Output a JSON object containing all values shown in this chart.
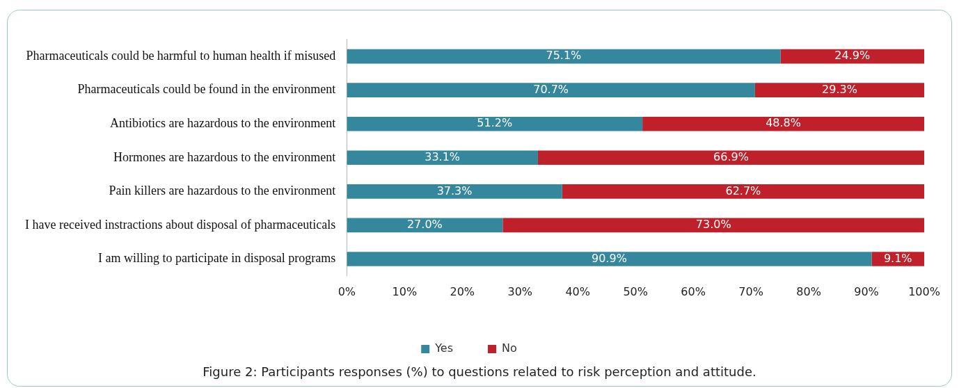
{
  "chart_data": {
    "type": "bar",
    "orientation": "horizontal",
    "stacked": true,
    "categories": [
      "Pharmaceuticals could be harmful to human health if misused",
      "Pharmaceuticals could be found in the environment",
      "Antibiotics are hazardous to the environment",
      "Hormones are hazardous to the environment",
      "Pain killers are hazardous to the environment",
      "I have received instractions about disposal of pharmaceuticals",
      "I am willing to participate in disposal programs"
    ],
    "series": [
      {
        "name": "Yes",
        "color": "#35879d",
        "values": [
          75.1,
          70.7,
          51.2,
          33.1,
          37.3,
          27.0,
          90.9
        ],
        "value_labels": [
          "75.1%",
          "70.7%",
          "51.2%",
          "33.1%",
          "37.3%",
          "27.0%",
          "90.9%"
        ]
      },
      {
        "name": "No",
        "color": "#c0202a",
        "values": [
          24.9,
          29.3,
          48.8,
          66.9,
          62.7,
          73.0,
          9.1
        ],
        "value_labels": [
          "24.9%",
          "29.3%",
          "48.8%",
          "66.9%",
          "62.7%",
          "73.0%",
          "9.1%"
        ]
      }
    ],
    "xlim": [
      0,
      100
    ],
    "xticks": [
      {
        "value": 0,
        "label": "0%"
      },
      {
        "value": 10,
        "label": "10%"
      },
      {
        "value": 20,
        "label": "20%"
      },
      {
        "value": 30,
        "label": "30%"
      },
      {
        "value": 40,
        "label": "40%"
      },
      {
        "value": 50,
        "label": "50%"
      },
      {
        "value": 60,
        "label": "60%"
      },
      {
        "value": 70,
        "label": "70%"
      },
      {
        "value": 80,
        "label": "80%"
      },
      {
        "value": 90,
        "label": "90%"
      },
      {
        "value": 100,
        "label": "100%"
      }
    ],
    "grid": false,
    "legend": "bottom",
    "annotations": [
      "Figure 2: Participants responses (%) to questions related to risk perception and attitude."
    ]
  }
}
